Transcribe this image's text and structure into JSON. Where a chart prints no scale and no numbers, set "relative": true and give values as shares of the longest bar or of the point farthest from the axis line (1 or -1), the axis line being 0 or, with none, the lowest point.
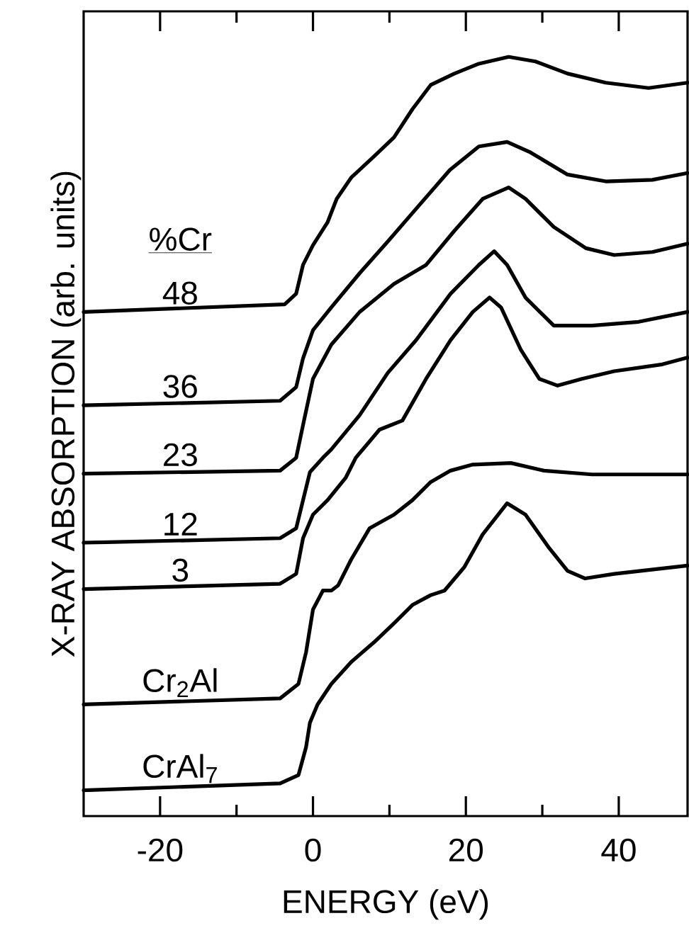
{
  "chart_data": {
    "type": "line",
    "relative": true,
    "xlabel": "ENERGY (eV)",
    "ylabel": "X-RAY ABSORPTION (arb. units)",
    "legend_title": "%Cr",
    "grid": false,
    "marker": "none",
    "line_style": "solid",
    "xlim": [
      -30,
      49
    ],
    "xticks": [
      -20,
      {
        "value": -10,
        "label": null
      },
      0,
      {
        "value": 10,
        "label": null
      },
      20,
      {
        "value": 30,
        "label": null
      },
      40
    ],
    "series": [
      {
        "name": "48",
        "color": "#000000",
        "x": [
          -30,
          -3.7,
          -2.2,
          -1.3,
          0,
          1.9,
          3.1,
          5.0,
          8.0,
          10.6,
          13.0,
          15.4,
          18.5,
          21.7,
          25.6,
          29.1,
          33.3,
          38.3,
          43.9,
          49
        ],
        "values": [
          0.664,
          0.674,
          0.688,
          0.726,
          0.752,
          0.782,
          0.813,
          0.841,
          0.869,
          0.894,
          0.931,
          0.963,
          0.978,
          0.991,
          1.0,
          0.994,
          0.978,
          0.966,
          0.959,
          0.966
        ]
      },
      {
        "name": "36",
        "color": "#000000",
        "x": [
          -30,
          -4.3,
          -2.2,
          -1.3,
          0,
          2.4,
          6.1,
          9.8,
          13.5,
          17.9,
          21.7,
          25.4,
          28.3,
          33.3,
          38.3,
          44.4,
          49
        ],
        "values": [
          0.541,
          0.547,
          0.565,
          0.603,
          0.64,
          0.67,
          0.715,
          0.757,
          0.8,
          0.851,
          0.882,
          0.888,
          0.875,
          0.845,
          0.836,
          0.838,
          0.847
        ]
      },
      {
        "name": "23",
        "color": "#000000",
        "x": [
          -30,
          -4.3,
          -2.2,
          -1.3,
          0,
          2.4,
          6.1,
          10.6,
          14.8,
          18.5,
          22.2,
          25.6,
          27.8,
          31.5,
          35.7,
          39.4,
          44.4,
          49
        ],
        "values": [
          0.451,
          0.455,
          0.472,
          0.515,
          0.576,
          0.621,
          0.664,
          0.701,
          0.726,
          0.771,
          0.813,
          0.828,
          0.813,
          0.776,
          0.748,
          0.739,
          0.743,
          0.754
        ]
      },
      {
        "name": "12",
        "color": "#000000",
        "x": [
          -30,
          -4.3,
          -2.2,
          -1.3,
          -0.4,
          1.3,
          2.4,
          6.1,
          9.8,
          13.5,
          18.0,
          21.7,
          23.7,
          25.4,
          27.8,
          31.5,
          36.5,
          42.6,
          49
        ],
        "values": [
          0.36,
          0.366,
          0.379,
          0.416,
          0.453,
          0.472,
          0.483,
          0.528,
          0.584,
          0.627,
          0.688,
          0.726,
          0.744,
          0.726,
          0.683,
          0.646,
          0.646,
          0.651,
          0.664
        ]
      },
      {
        "name": "3",
        "color": "#000000",
        "x": [
          -30,
          -4.3,
          -2.2,
          -1.3,
          0,
          1.9,
          4.3,
          5.6,
          8.7,
          11.7,
          14.8,
          18.0,
          20.9,
          23.1,
          24.6,
          27.2,
          29.6,
          32.0,
          35.2,
          39.4,
          45.7,
          49
        ],
        "values": [
          0.299,
          0.306,
          0.319,
          0.366,
          0.397,
          0.416,
          0.446,
          0.472,
          0.509,
          0.521,
          0.576,
          0.627,
          0.664,
          0.683,
          0.67,
          0.614,
          0.576,
          0.567,
          0.576,
          0.586,
          0.595,
          0.604
        ]
      },
      {
        "name": "Cr$_{2}$Al",
        "color": "#000000",
        "x": [
          -30,
          -4.3,
          -1.9,
          -0.9,
          0,
          1.3,
          2.4,
          3.3,
          5.0,
          7.4,
          10.6,
          13.0,
          15.4,
          18.0,
          20.9,
          25.9,
          30.2,
          36.5,
          49
        ],
        "values": [
          0.147,
          0.155,
          0.174,
          0.216,
          0.272,
          0.297,
          0.297,
          0.304,
          0.338,
          0.379,
          0.397,
          0.416,
          0.44,
          0.455,
          0.463,
          0.465,
          0.455,
          0.45,
          0.45
        ]
      },
      {
        "name": "CrAl$_{7}$",
        "color": "#000000",
        "x": [
          -30,
          -4.3,
          -1.9,
          -0.9,
          -0.4,
          0.6,
          2.4,
          5.0,
          8.0,
          10.6,
          13.0,
          15.4,
          17.2,
          19.8,
          22.2,
          25.4,
          27.8,
          30.9,
          33.3,
          35.6,
          39.4,
          49
        ],
        "values": [
          0.034,
          0.043,
          0.054,
          0.091,
          0.123,
          0.147,
          0.174,
          0.203,
          0.229,
          0.254,
          0.278,
          0.291,
          0.297,
          0.328,
          0.371,
          0.412,
          0.397,
          0.353,
          0.323,
          0.313,
          0.319,
          0.33
        ]
      }
    ]
  }
}
